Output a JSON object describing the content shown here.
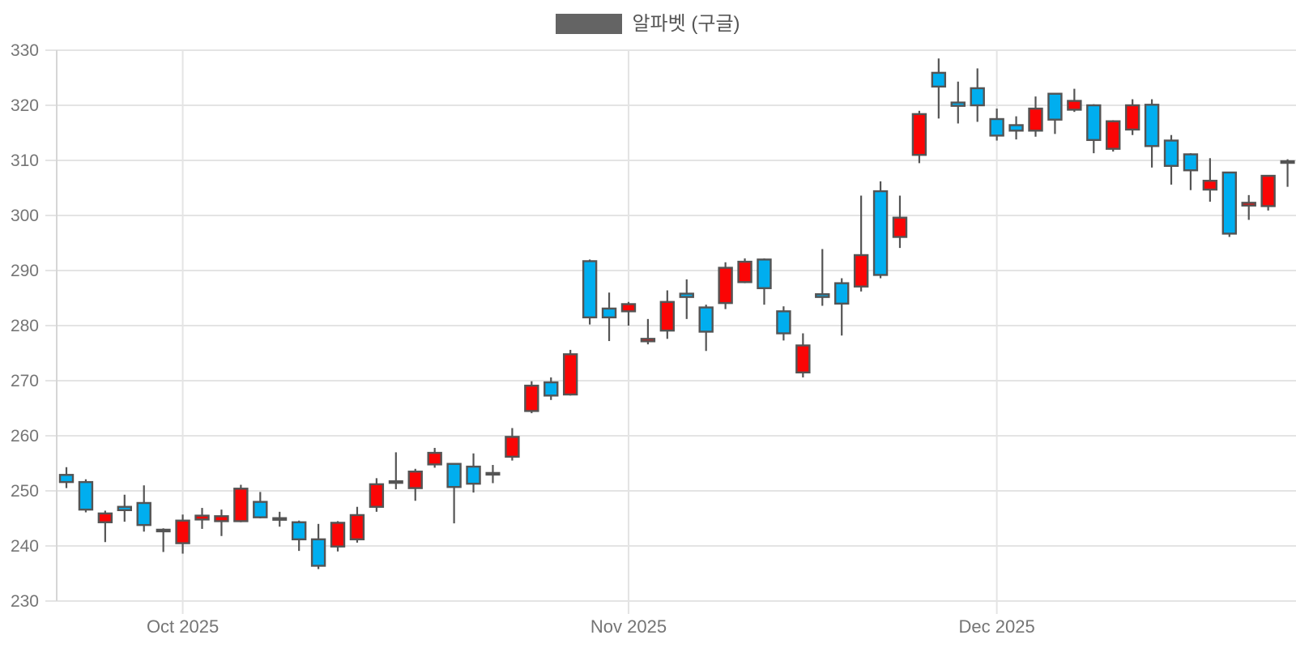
{
  "legend": {
    "label": "알파벳 (구글)",
    "swatch_color": "#646464"
  },
  "chart_data": {
    "type": "candlestick",
    "title": "",
    "xlabel": "",
    "ylabel": "",
    "ylim": [
      230,
      330
    ],
    "y_tick_step": 10,
    "y_tick_labels": [
      "230",
      "240",
      "250",
      "260",
      "270",
      "280",
      "290",
      "300",
      "310",
      "320",
      "330"
    ],
    "grid": true,
    "legend_position": "top-center",
    "x_ticks": [
      {
        "index": 6,
        "label": "Oct 2025"
      },
      {
        "index": 29,
        "label": "Nov 2025"
      },
      {
        "index": 48,
        "label": "Dec 2025"
      }
    ],
    "colors": {
      "up": "#fb0505",
      "down": "#00aeef",
      "doji": "#545454",
      "wick": "#545454",
      "grid": "#e4e4e4",
      "axis_line": "#d6d6d6",
      "axis_text": "#757575"
    },
    "series": [
      {
        "name": "알파벳 (구글)",
        "candles": [
          {
            "o": 252.9,
            "h": 254.3,
            "l": 250.5,
            "c": 251.6
          },
          {
            "o": 251.6,
            "h": 252.1,
            "l": 246.1,
            "c": 246.6
          },
          {
            "o": 244.3,
            "h": 246.4,
            "l": 240.7,
            "c": 245.9
          },
          {
            "o": 247.1,
            "h": 249.3,
            "l": 244.4,
            "c": 246.5
          },
          {
            "o": 247.8,
            "h": 251.0,
            "l": 242.6,
            "c": 243.8
          },
          {
            "o": 242.8,
            "h": 243.2,
            "l": 238.9,
            "c": 242.8
          },
          {
            "o": 240.5,
            "h": 245.7,
            "l": 238.6,
            "c": 244.6
          },
          {
            "o": 244.8,
            "h": 246.9,
            "l": 243.1,
            "c": 245.5
          },
          {
            "o": 244.5,
            "h": 246.6,
            "l": 241.8,
            "c": 245.4
          },
          {
            "o": 244.5,
            "h": 251.1,
            "l": 244.3,
            "c": 250.4
          },
          {
            "o": 248.0,
            "h": 249.8,
            "l": 245.0,
            "c": 245.2
          },
          {
            "o": 244.9,
            "h": 246.2,
            "l": 243.5,
            "c": 244.9
          },
          {
            "o": 244.3,
            "h": 244.6,
            "l": 239.1,
            "c": 241.2
          },
          {
            "o": 241.2,
            "h": 244.0,
            "l": 235.8,
            "c": 236.4
          },
          {
            "o": 239.9,
            "h": 244.5,
            "l": 239.0,
            "c": 244.2
          },
          {
            "o": 241.2,
            "h": 247.1,
            "l": 240.6,
            "c": 245.6
          },
          {
            "o": 247.1,
            "h": 252.3,
            "l": 246.2,
            "c": 251.2
          },
          {
            "o": 251.6,
            "h": 257.0,
            "l": 250.3,
            "c": 251.6
          },
          {
            "o": 250.5,
            "h": 254.0,
            "l": 248.2,
            "c": 253.5
          },
          {
            "o": 254.8,
            "h": 257.8,
            "l": 254.2,
            "c": 256.9
          },
          {
            "o": 254.9,
            "h": 254.9,
            "l": 244.1,
            "c": 250.7
          },
          {
            "o": 254.4,
            "h": 256.8,
            "l": 249.7,
            "c": 251.3
          },
          {
            "o": 253.1,
            "h": 254.7,
            "l": 251.4,
            "c": 253.1
          },
          {
            "o": 256.2,
            "h": 261.4,
            "l": 255.5,
            "c": 259.8
          },
          {
            "o": 264.5,
            "h": 269.9,
            "l": 264.1,
            "c": 269.1
          },
          {
            "o": 269.7,
            "h": 270.6,
            "l": 266.5,
            "c": 267.3
          },
          {
            "o": 267.5,
            "h": 275.6,
            "l": 267.3,
            "c": 274.8
          },
          {
            "o": 291.7,
            "h": 292.0,
            "l": 280.2,
            "c": 281.5
          },
          {
            "o": 283.1,
            "h": 286.0,
            "l": 277.2,
            "c": 281.5
          },
          {
            "o": 282.6,
            "h": 284.3,
            "l": 280.0,
            "c": 283.9
          },
          {
            "o": 277.2,
            "h": 281.2,
            "l": 276.6,
            "c": 277.6
          },
          {
            "o": 279.1,
            "h": 286.4,
            "l": 277.6,
            "c": 284.3
          },
          {
            "o": 285.8,
            "h": 288.4,
            "l": 281.2,
            "c": 285.2
          },
          {
            "o": 283.3,
            "h": 283.8,
            "l": 275.4,
            "c": 278.9
          },
          {
            "o": 284.1,
            "h": 291.5,
            "l": 283.0,
            "c": 290.5
          },
          {
            "o": 287.9,
            "h": 292.2,
            "l": 287.7,
            "c": 291.6
          },
          {
            "o": 292.0,
            "h": 292.2,
            "l": 283.8,
            "c": 286.8
          },
          {
            "o": 282.6,
            "h": 283.5,
            "l": 277.3,
            "c": 278.6
          },
          {
            "o": 271.5,
            "h": 278.6,
            "l": 270.6,
            "c": 276.4
          },
          {
            "o": 285.7,
            "h": 293.9,
            "l": 283.6,
            "c": 285.2
          },
          {
            "o": 287.7,
            "h": 288.6,
            "l": 278.2,
            "c": 284.0
          },
          {
            "o": 287.1,
            "h": 303.6,
            "l": 286.2,
            "c": 292.8
          },
          {
            "o": 304.4,
            "h": 306.2,
            "l": 288.6,
            "c": 289.2
          },
          {
            "o": 296.1,
            "h": 303.6,
            "l": 294.1,
            "c": 299.6
          },
          {
            "o": 311.0,
            "h": 319.0,
            "l": 309.5,
            "c": 318.4
          },
          {
            "o": 325.9,
            "h": 328.5,
            "l": 317.6,
            "c": 323.4
          },
          {
            "o": 320.5,
            "h": 324.3,
            "l": 316.7,
            "c": 319.9
          },
          {
            "o": 323.1,
            "h": 326.7,
            "l": 317.0,
            "c": 320.0
          },
          {
            "o": 317.5,
            "h": 319.4,
            "l": 313.6,
            "c": 314.5
          },
          {
            "o": 316.4,
            "h": 318.0,
            "l": 313.8,
            "c": 315.4
          },
          {
            "o": 315.4,
            "h": 321.6,
            "l": 314.3,
            "c": 319.4
          },
          {
            "o": 322.1,
            "h": 322.2,
            "l": 314.8,
            "c": 317.4
          },
          {
            "o": 319.2,
            "h": 323.0,
            "l": 318.8,
            "c": 320.8
          },
          {
            "o": 320.0,
            "h": 320.2,
            "l": 311.3,
            "c": 313.7
          },
          {
            "o": 312.1,
            "h": 317.3,
            "l": 311.6,
            "c": 317.1
          },
          {
            "o": 315.6,
            "h": 321.1,
            "l": 314.6,
            "c": 320.0
          },
          {
            "o": 320.1,
            "h": 321.1,
            "l": 308.7,
            "c": 312.6
          },
          {
            "o": 313.6,
            "h": 314.6,
            "l": 305.6,
            "c": 309.0
          },
          {
            "o": 311.1,
            "h": 311.3,
            "l": 304.6,
            "c": 308.2
          },
          {
            "o": 304.7,
            "h": 310.4,
            "l": 302.5,
            "c": 306.3
          },
          {
            "o": 307.8,
            "h": 307.9,
            "l": 296.1,
            "c": 296.7
          },
          {
            "o": 301.8,
            "h": 303.7,
            "l": 299.2,
            "c": 302.3
          },
          {
            "o": 301.7,
            "h": 307.2,
            "l": 300.9,
            "c": 307.2
          },
          {
            "o": 309.7,
            "h": 310.2,
            "l": 305.2,
            "c": 309.7
          }
        ]
      }
    ]
  }
}
